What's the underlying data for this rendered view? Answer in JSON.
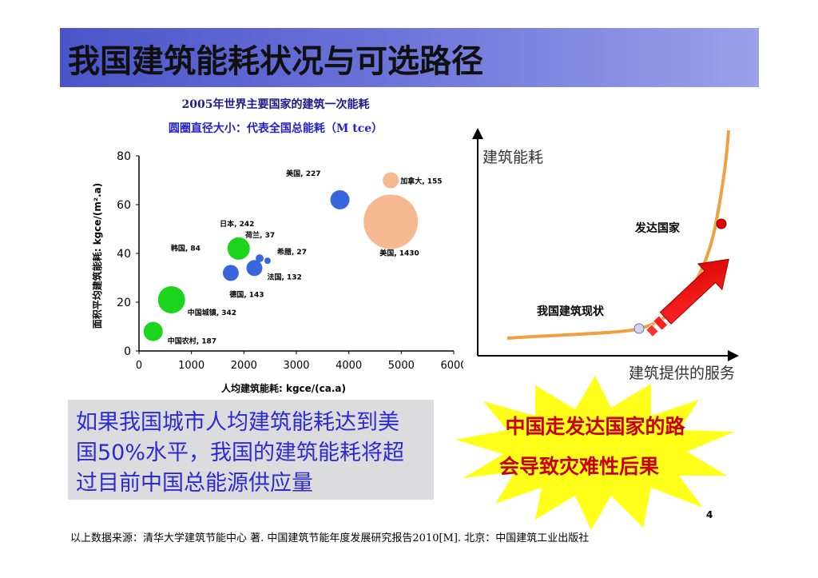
{
  "slide": {
    "title": "我国建筑能耗状况与可选路径",
    "page_number": "4",
    "source": "以上数据来源：清华大学建筑节能中心 著. 中国建筑节能年度发展研究报告2010[M]. 北京：中国建筑工业出版社"
  },
  "note": {
    "lines": [
      "如果我国城市人均建筑能耗达到美",
      "国50%水平，我国的建筑能耗将超",
      "过目前中国总能源供应量"
    ]
  },
  "warning": {
    "lines": [
      "中国走发达国家的路",
      "会导致灾难性后果"
    ]
  },
  "chart_data": [
    {
      "type": "scatter",
      "title": "2005年世界主要国家的建筑一次能耗",
      "subtitle": "圆圈直径大小：代表全国总能耗（M tce）",
      "xlabel": "人均建筑能耗: kgce/(ca.a)",
      "ylabel": "面积平均建筑能耗: kgce/(m².a)",
      "xlim": [
        0,
        6000
      ],
      "ylim": [
        0,
        80
      ],
      "xticks": [
        "0",
        "1000",
        "2000",
        "3000",
        "4000",
        "5000",
        "6000"
      ],
      "yticks": [
        "0",
        "20",
        "40",
        "60",
        "80"
      ],
      "grid": false,
      "points": [
        {
          "label": "美国, 227",
          "x": 3830,
          "y": 62,
          "diameter": 227,
          "color": "#3a66dd"
        },
        {
          "label": "加拿大, 155",
          "x": 4800,
          "y": 70,
          "diameter": 155,
          "color": "#f5b890"
        },
        {
          "label": "美国, 1430",
          "x": 4800,
          "y": 53,
          "diameter": 1430,
          "color": "#f5b890"
        },
        {
          "label": "日本, 242",
          "x": 1900,
          "y": 42,
          "diameter": 242,
          "color": "#1cd41c"
        },
        {
          "label": "韩国, 84",
          "x": 1750,
          "y": 32,
          "diameter": 84,
          "color": "#3a66dd"
        },
        {
          "label": "荷兰, 37",
          "x": 2300,
          "y": 38,
          "diameter": 37,
          "color": "#3a66dd"
        },
        {
          "label": "希腊, 27",
          "x": 2450,
          "y": 37,
          "diameter": 27,
          "color": "#3a66dd"
        },
        {
          "label": "法国, 132",
          "x": 2200,
          "y": 34,
          "diameter": 132,
          "color": "#3a66dd"
        },
        {
          "label": "德国, 143",
          "x": 1750,
          "y": 32,
          "diameter": 143,
          "color": "#3a66dd"
        },
        {
          "label": "中国城镇, 342",
          "x": 620,
          "y": 21,
          "diameter": 342,
          "color": "#1cd41c"
        },
        {
          "label": "中国农村, 187",
          "x": 270,
          "y": 8,
          "diameter": 187,
          "color": "#1cd41c"
        }
      ]
    },
    {
      "type": "line",
      "ylabel": "建筑能耗",
      "xlabel": "建筑提供的服务",
      "annotations": [
        "发达国家",
        "我国建筑现状"
      ]
    }
  ]
}
